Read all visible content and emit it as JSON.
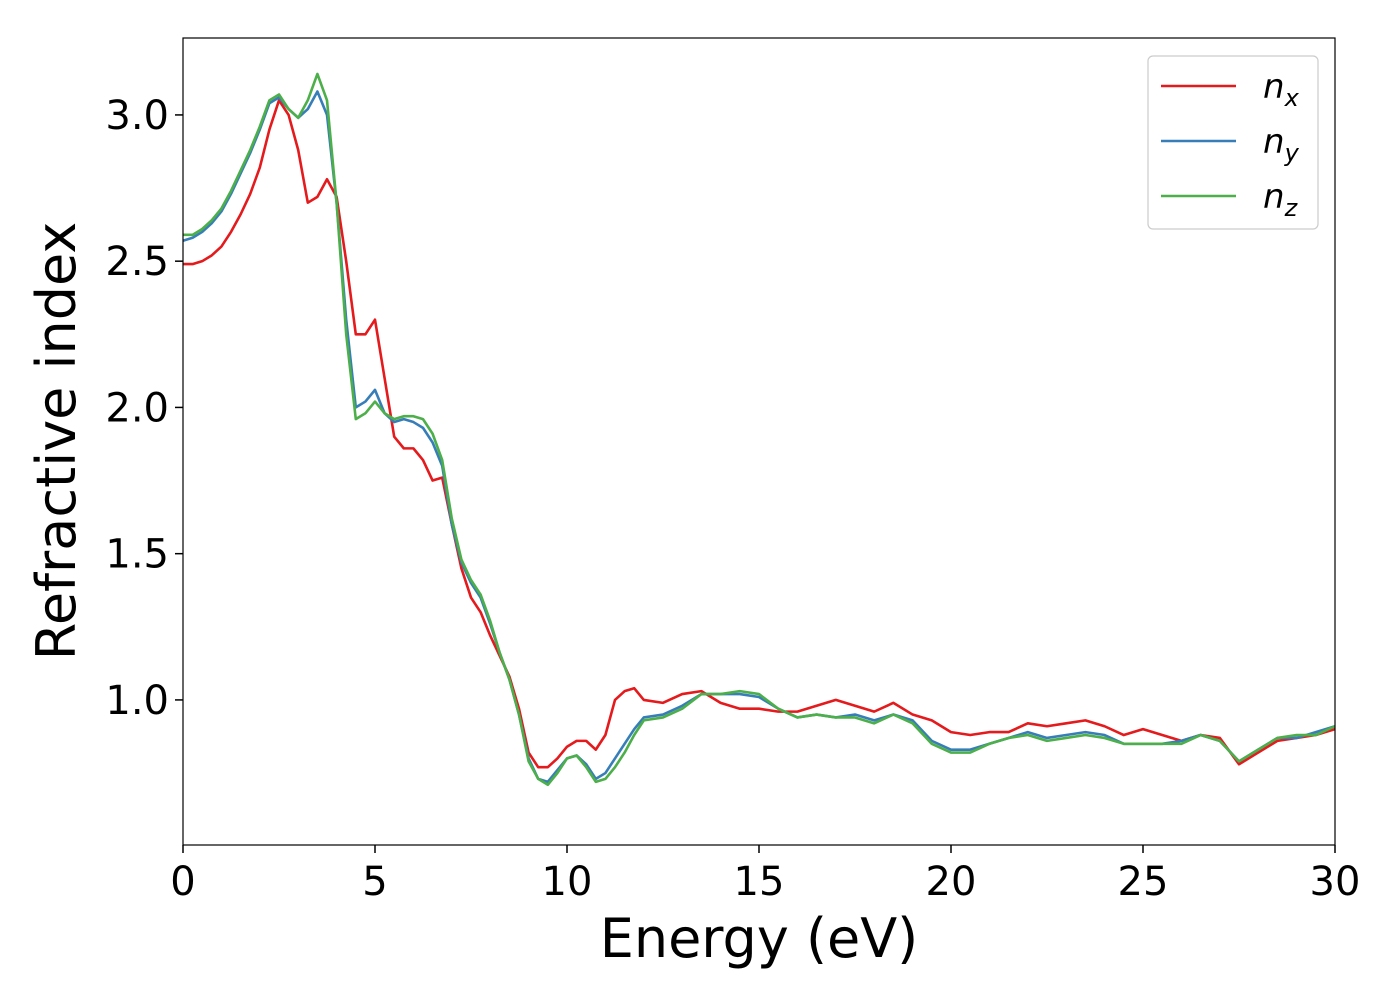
{
  "chart_data": {
    "type": "line",
    "xlabel": "Energy (eV)",
    "ylabel": "Refractive index",
    "x": [
      0,
      0.25,
      0.5,
      0.75,
      1,
      1.25,
      1.5,
      1.75,
      2,
      2.25,
      2.5,
      2.75,
      3,
      3.25,
      3.5,
      3.75,
      4,
      4.25,
      4.5,
      4.75,
      5,
      5.25,
      5.5,
      5.75,
      6,
      6.25,
      6.5,
      6.75,
      7,
      7.25,
      7.5,
      7.75,
      8,
      8.25,
      8.5,
      8.75,
      9,
      9.25,
      9.5,
      9.75,
      10,
      10.25,
      10.5,
      10.75,
      11,
      11.25,
      11.5,
      11.75,
      12,
      12.5,
      13,
      13.5,
      14,
      14.5,
      15,
      15.5,
      16,
      16.5,
      17,
      17.5,
      18,
      18.5,
      19,
      19.5,
      20,
      20.5,
      21,
      21.5,
      22,
      22.5,
      23,
      23.5,
      24,
      24.5,
      25,
      25.5,
      26,
      26.5,
      27,
      27.5,
      28,
      28.5,
      29,
      29.5,
      30
    ],
    "series": [
      {
        "name": "n_x",
        "color": "#e41a1c",
        "values": [
          2.49,
          2.49,
          2.5,
          2.52,
          2.55,
          2.6,
          2.66,
          2.73,
          2.82,
          2.95,
          3.05,
          3.0,
          2.88,
          2.7,
          2.72,
          2.78,
          2.72,
          2.5,
          2.25,
          2.25,
          2.3,
          2.1,
          1.9,
          1.86,
          1.86,
          1.82,
          1.75,
          1.76,
          1.6,
          1.45,
          1.35,
          1.3,
          1.22,
          1.15,
          1.08,
          0.97,
          0.82,
          0.77,
          0.77,
          0.8,
          0.84,
          0.86,
          0.86,
          0.83,
          0.88,
          1.0,
          1.03,
          1.04,
          1.0,
          0.99,
          1.02,
          1.03,
          0.99,
          0.97,
          0.97,
          0.96,
          0.96,
          0.98,
          1.0,
          0.98,
          0.96,
          0.99,
          0.95,
          0.93,
          0.89,
          0.88,
          0.89,
          0.89,
          0.92,
          0.91,
          0.92,
          0.93,
          0.91,
          0.88,
          0.9,
          0.88,
          0.86,
          0.88,
          0.87,
          0.78,
          0.82,
          0.86,
          0.87,
          0.88,
          0.9
        ]
      },
      {
        "name": "n_y",
        "color": "#377eb8",
        "values": [
          2.57,
          2.58,
          2.6,
          2.63,
          2.67,
          2.73,
          2.8,
          2.87,
          2.95,
          3.04,
          3.06,
          3.02,
          2.99,
          3.02,
          3.08,
          3.0,
          2.7,
          2.3,
          2.0,
          2.02,
          2.06,
          1.98,
          1.95,
          1.96,
          1.95,
          1.93,
          1.88,
          1.8,
          1.6,
          1.47,
          1.4,
          1.35,
          1.26,
          1.16,
          1.07,
          0.95,
          0.8,
          0.73,
          0.72,
          0.76,
          0.8,
          0.81,
          0.78,
          0.73,
          0.75,
          0.8,
          0.85,
          0.9,
          0.94,
          0.95,
          0.98,
          1.02,
          1.02,
          1.02,
          1.01,
          0.97,
          0.94,
          0.95,
          0.94,
          0.95,
          0.93,
          0.95,
          0.93,
          0.86,
          0.83,
          0.83,
          0.85,
          0.87,
          0.89,
          0.87,
          0.88,
          0.89,
          0.88,
          0.85,
          0.85,
          0.85,
          0.86,
          0.88,
          0.86,
          0.79,
          0.83,
          0.87,
          0.87,
          0.89,
          0.91
        ]
      },
      {
        "name": "n_z",
        "color": "#4daf4a",
        "values": [
          2.59,
          2.59,
          2.61,
          2.64,
          2.68,
          2.74,
          2.81,
          2.88,
          2.96,
          3.05,
          3.07,
          3.02,
          2.99,
          3.05,
          3.14,
          3.05,
          2.7,
          2.25,
          1.96,
          1.98,
          2.02,
          1.98,
          1.96,
          1.97,
          1.97,
          1.96,
          1.91,
          1.82,
          1.62,
          1.48,
          1.41,
          1.36,
          1.27,
          1.16,
          1.07,
          0.95,
          0.79,
          0.73,
          0.71,
          0.75,
          0.8,
          0.81,
          0.77,
          0.72,
          0.73,
          0.77,
          0.82,
          0.88,
          0.93,
          0.94,
          0.97,
          1.02,
          1.02,
          1.03,
          1.02,
          0.97,
          0.94,
          0.95,
          0.94,
          0.94,
          0.92,
          0.95,
          0.92,
          0.85,
          0.82,
          0.82,
          0.85,
          0.87,
          0.88,
          0.86,
          0.87,
          0.88,
          0.87,
          0.85,
          0.85,
          0.85,
          0.85,
          0.88,
          0.86,
          0.79,
          0.83,
          0.87,
          0.88,
          0.88,
          0.91
        ]
      }
    ],
    "xlim": [
      0,
      30
    ],
    "xticks": [
      0,
      5,
      10,
      15,
      20,
      25,
      30
    ],
    "ylim": [
      0.504,
      3.263
    ],
    "yticks": [
      {
        "value": 1,
        "label": "1.0"
      },
      1.5,
      {
        "value": 2,
        "label": "2.0"
      },
      2.5,
      {
        "value": 3,
        "label": "3.0"
      }
    ],
    "legend": "upper right",
    "grid": false
  }
}
